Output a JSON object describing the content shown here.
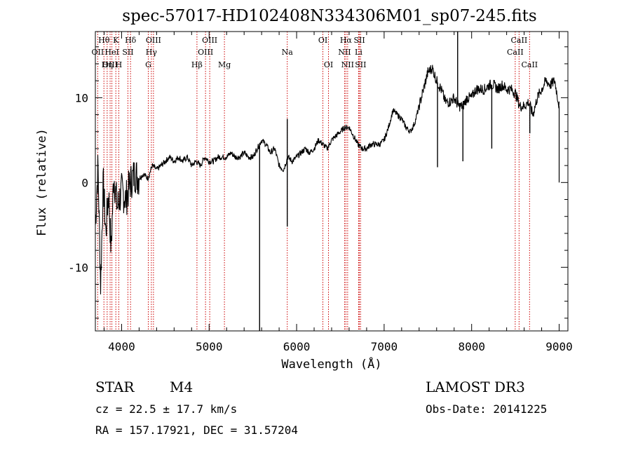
{
  "figure": {
    "title": "spec-57017-HD102408N334306M01_sp07-245.fits",
    "object_class": "STAR",
    "subclass": "M4",
    "survey": "LAMOST DR3",
    "redshift_text": "cz = 22.5 ± 17.7 km/s",
    "obs_date": "Obs-Date: 20141225",
    "coords": "RA = 157.17921, DEC =  31.57204"
  },
  "chart_data": {
    "type": "line",
    "title": "spec-57017-HD102408N334306M01_sp07-245.fits",
    "xlabel": "Wavelength (Å)",
    "ylabel": "Flux (relative)",
    "xlim": [
      3700,
      9100
    ],
    "ylim": [
      -17.5,
      17.8
    ],
    "xticks": [
      4000,
      5000,
      6000,
      7000,
      8000,
      9000
    ],
    "yticks": [
      -10,
      0,
      10
    ],
    "grid": false,
    "legend": "none",
    "line_color": "#000000",
    "marker_color": "#cc0000",
    "series": [
      {
        "x": [
          3700,
          3730,
          3760,
          3790,
          3820,
          3850,
          3880,
          3910,
          3950,
          4000,
          4050,
          4100,
          4150,
          4200,
          4250,
          4300,
          4350,
          4400,
          4450,
          4500,
          4550,
          4600,
          4650,
          4700,
          4750,
          4800,
          4850,
          4900,
          4950,
          5000,
          5050,
          5100,
          5150,
          5200,
          5250,
          5300,
          5350,
          5400,
          5450,
          5500,
          5550,
          5600,
          5650,
          5700,
          5750,
          5800,
          5850,
          5900,
          5950,
          6000,
          6050,
          6100,
          6150,
          6200,
          6250,
          6300,
          6350,
          6400,
          6450,
          6500,
          6550,
          6600,
          6650,
          6700,
          6750,
          6800,
          6850,
          6900,
          6950,
          7000,
          7050,
          7100,
          7150,
          7200,
          7250,
          7300,
          7350,
          7400,
          7450,
          7500,
          7550,
          7600,
          7650,
          7700,
          7750,
          7800,
          7850,
          7900,
          7950,
          8000,
          8050,
          8100,
          8150,
          8200,
          8250,
          8300,
          8350,
          8400,
          8450,
          8500,
          8550,
          8600,
          8650,
          8700,
          8750,
          8800,
          8850,
          8900,
          8950,
          9000
        ],
        "values": [
          -5,
          2,
          -12,
          0,
          -6,
          -1,
          -8,
          1,
          -3,
          -1,
          -2,
          0,
          1,
          0.5,
          1,
          0.5,
          2,
          1.5,
          2,
          2.5,
          3,
          2.5,
          3,
          2.5,
          3,
          2,
          2.5,
          2,
          3,
          2.5,
          2.5,
          3,
          3,
          3,
          3.5,
          3,
          3,
          3.5,
          3,
          3,
          4,
          5,
          4.5,
          3.5,
          4,
          2,
          1.5,
          3,
          2.5,
          3,
          3.5,
          4,
          3.5,
          4,
          5,
          4.5,
          4,
          5,
          5.5,
          6,
          6.5,
          6.5,
          5.5,
          4.5,
          4,
          4,
          4.5,
          4.5,
          4.5,
          5,
          6.5,
          8.5,
          8,
          7.5,
          6.5,
          6,
          7,
          9,
          11,
          13,
          13.5,
          12,
          11,
          9.5,
          9.5,
          10,
          9,
          9,
          10,
          10,
          11,
          11,
          11,
          11.5,
          11.5,
          11,
          11.5,
          11,
          11,
          10.5,
          9,
          9,
          9.5,
          8,
          10,
          11,
          12,
          11.5,
          12,
          9
        ],
        "spikes": [
          {
            "x": 5577,
            "y": -17.5
          },
          {
            "x": 5893,
            "y": -5.2
          },
          {
            "x": 5893,
            "y": 7.5
          },
          {
            "x": 7610,
            "y": 1.8
          },
          {
            "x": 7840,
            "y": 17.8
          },
          {
            "x": 7900,
            "y": 2.5
          },
          {
            "x": 8230,
            "y": 4.0
          },
          {
            "x": 8665,
            "y": 5.8
          }
        ]
      }
    ],
    "line_markers": [
      {
        "name": "Hθ",
        "x": 3798,
        "row": 0
      },
      {
        "name": "K",
        "x": 3934,
        "row": 0
      },
      {
        "name": "Hδ",
        "x": 4102,
        "row": 0
      },
      {
        "name": "OIII",
        "x": 4364,
        "row": 0
      },
      {
        "name": "OIII",
        "x": 5007,
        "row": 0
      },
      {
        "name": "OI",
        "x": 6300,
        "row": 0
      },
      {
        "name": "Hα",
        "x": 6563,
        "row": 0
      },
      {
        "name": "SII",
        "x": 6717,
        "row": 0
      },
      {
        "name": "CaII",
        "x": 8542,
        "row": 0
      },
      {
        "name": "OII",
        "x": 3727,
        "row": 1
      },
      {
        "name": "HeI",
        "x": 3889,
        "row": 1
      },
      {
        "name": "SII",
        "x": 4072,
        "row": 1
      },
      {
        "name": "Hγ",
        "x": 4340,
        "row": 1
      },
      {
        "name": "OIII",
        "x": 4959,
        "row": 1
      },
      {
        "name": "Na",
        "x": 5893,
        "row": 1
      },
      {
        "name": "NII",
        "x": 6548,
        "row": 1
      },
      {
        "name": "Li",
        "x": 6708,
        "row": 1
      },
      {
        "name": "CaII",
        "x": 8498,
        "row": 1
      },
      {
        "name": "OIII",
        "x": 3869,
        "row": 2
      },
      {
        "name": "Hη",
        "x": 3835,
        "row": 2
      },
      {
        "name": "H",
        "x": 3968,
        "row": 2
      },
      {
        "name": "G",
        "x": 4305,
        "row": 2
      },
      {
        "name": "Hβ",
        "x": 4861,
        "row": 2
      },
      {
        "name": "Mg",
        "x": 5175,
        "row": 2
      },
      {
        "name": "OI",
        "x": 6364,
        "row": 2
      },
      {
        "name": "NII",
        "x": 6583,
        "row": 2
      },
      {
        "name": "SII",
        "x": 6731,
        "row": 2
      },
      {
        "name": "CaII",
        "x": 8662,
        "row": 2
      }
    ]
  }
}
